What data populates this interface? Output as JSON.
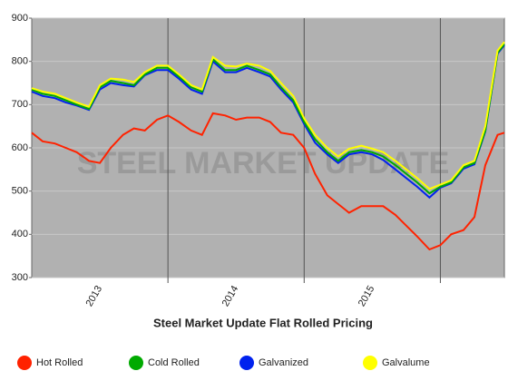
{
  "chart_data": {
    "type": "line",
    "title": "Steel Market Update Flat Rolled Pricing",
    "watermark": "STEEL MARKET UPDATE",
    "x": [
      2013,
      2013.08,
      2013.17,
      2013.25,
      2013.33,
      2013.42,
      2013.5,
      2013.58,
      2013.67,
      2013.75,
      2013.83,
      2013.92,
      2014,
      2014.08,
      2014.17,
      2014.25,
      2014.33,
      2014.42,
      2014.5,
      2014.58,
      2014.67,
      2014.75,
      2014.83,
      2014.92,
      2015,
      2015.08,
      2015.17,
      2015.25,
      2015.33,
      2015.42,
      2015.5,
      2015.58,
      2015.67,
      2015.75,
      2015.83,
      2015.92,
      2016,
      2016.08,
      2016.17,
      2016.25,
      2016.33,
      2016.42,
      2016.47
    ],
    "series": [
      {
        "name": "Hot Rolled",
        "color": "#ff2200",
        "values": [
          635,
          615,
          610,
          600,
          590,
          570,
          565,
          600,
          630,
          645,
          640,
          665,
          675,
          660,
          640,
          630,
          680,
          675,
          665,
          670,
          670,
          660,
          635,
          630,
          600,
          540,
          490,
          470,
          450,
          465,
          465,
          465,
          445,
          420,
          395,
          365,
          375,
          400,
          410,
          440,
          560,
          630,
          635
        ]
      },
      {
        "name": "Cold Rolled",
        "color": "#00aa00",
        "values": [
          735,
          725,
          720,
          710,
          700,
          690,
          740,
          755,
          750,
          745,
          770,
          785,
          785,
          765,
          740,
          730,
          805,
          780,
          780,
          790,
          780,
          770,
          740,
          710,
          660,
          620,
          590,
          570,
          590,
          595,
          590,
          580,
          560,
          540,
          520,
          495,
          510,
          520,
          555,
          565,
          640,
          820,
          840
        ]
      },
      {
        "name": "Galvanized",
        "color": "#0022ee",
        "values": [
          730,
          720,
          715,
          705,
          698,
          688,
          735,
          750,
          745,
          742,
          768,
          780,
          780,
          760,
          735,
          725,
          800,
          775,
          775,
          785,
          775,
          765,
          735,
          705,
          655,
          612,
          585,
          565,
          585,
          590,
          585,
          572,
          550,
          530,
          510,
          485,
          508,
          518,
          552,
          562,
          638,
          818,
          838
        ]
      },
      {
        "name": "Galvalume",
        "color": "#ffff00",
        "values": [
          738,
          730,
          725,
          715,
          705,
          695,
          745,
          760,
          758,
          752,
          775,
          790,
          790,
          770,
          745,
          735,
          810,
          790,
          788,
          795,
          790,
          778,
          750,
          720,
          668,
          630,
          600,
          580,
          598,
          605,
          598,
          590,
          570,
          550,
          530,
          505,
          515,
          525,
          560,
          570,
          650,
          825,
          845
        ]
      }
    ],
    "xlim": [
      2013,
      2016.47
    ],
    "xticks": [
      {
        "value": 2013.5,
        "label": "2013"
      },
      {
        "value": 2014.5,
        "label": "2014"
      },
      {
        "value": 2015.5,
        "label": "2015"
      }
    ],
    "xgrid": [
      2014,
      2015,
      2016
    ],
    "ylim": [
      300,
      900
    ],
    "yticks": [
      300,
      400,
      500,
      600,
      700,
      800,
      900
    ],
    "grid": true,
    "legend": "bottom"
  }
}
